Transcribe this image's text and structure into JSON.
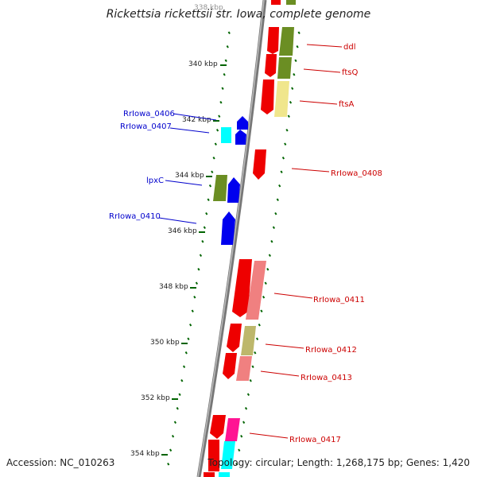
{
  "title": "Rickettsia rickettsii str. Iowa, complete genome",
  "accession": "Accession: NC_010263",
  "topology": "Topology: circular; Length: 1,268,175 bp; Genes: 1,420",
  "kbp_labels": [
    {
      "label": "338 kbp"
    },
    {
      "label": "340 kbp"
    },
    {
      "label": "342 kbp"
    },
    {
      "label": "344 kbp"
    },
    {
      "label": "346 kbp"
    },
    {
      "label": "348 kbp"
    },
    {
      "label": "350 kbp"
    },
    {
      "label": "352 kbp"
    },
    {
      "label": "354 kbp"
    }
  ],
  "gene_labels_right": [
    "ddl",
    "ftsQ",
    "ftsA",
    "RrIowa_0408",
    "RrIowa_0411",
    "RrIowa_0412",
    "RrIowa_0413",
    "RrIowa_0417"
  ],
  "gene_labels_left": [
    "RrIowa_0406",
    "RrIowa_0407",
    "lpxC",
    "RrIowa_0410"
  ],
  "colors": {
    "red": "#ee0000",
    "olive": "#6b8e23",
    "khaki": "#f0e68c",
    "blue": "#0000ee",
    "cyan": "#00ffff",
    "salmon": "#f08080",
    "pink": "#ff1493",
    "tick_green": "#006400",
    "backbone": "#888888",
    "right_label": "#cc0000",
    "left_label": "#0000cc"
  }
}
